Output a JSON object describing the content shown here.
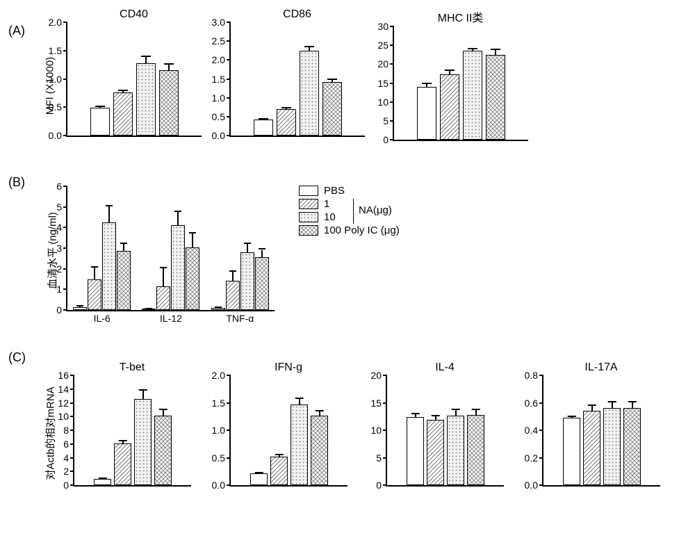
{
  "row_labels": {
    "A": "(A)",
    "B": "(B)",
    "C": "(C)"
  },
  "fills": {
    "pbs": "#ffffff",
    "na1": "url(#diag)",
    "na10": "url(#dots)",
    "poly": "url(#cross)"
  },
  "legend": {
    "items": [
      {
        "key": "pbs",
        "label": "PBS"
      },
      {
        "key": "na1",
        "label": "1"
      },
      {
        "key": "na10",
        "label": "10"
      },
      {
        "key": "poly",
        "label": "100 Poly IC (μg)"
      }
    ],
    "na_label": "NA(μg)"
  },
  "rowA": {
    "y_label": "MFI (X1000)",
    "panels": [
      {
        "title": "CD40",
        "ymax": 2.0,
        "ystep": 0.5,
        "decimals": 1,
        "bars": [
          {
            "v": 0.49,
            "e": 0.03
          },
          {
            "v": 0.76,
            "e": 0.04
          },
          {
            "v": 1.28,
            "e": 0.12
          },
          {
            "v": 1.15,
            "e": 0.12
          }
        ]
      },
      {
        "title": "CD86",
        "ymax": 3.0,
        "ystep": 0.5,
        "decimals": 1,
        "bars": [
          {
            "v": 0.42,
            "e": 0.02
          },
          {
            "v": 0.7,
            "e": 0.04
          },
          {
            "v": 2.24,
            "e": 0.12
          },
          {
            "v": 1.42,
            "e": 0.08
          }
        ]
      },
      {
        "title": "MHC II类",
        "ymax": 30,
        "ystep": 5,
        "decimals": 0,
        "bars": [
          {
            "v": 14.0,
            "e": 0.9
          },
          {
            "v": 17.3,
            "e": 1.1
          },
          {
            "v": 23.5,
            "e": 0.7
          },
          {
            "v": 22.5,
            "e": 1.4
          }
        ]
      }
    ]
  },
  "rowB": {
    "y_label": "血清水平 (ng/ml)",
    "panel": {
      "ymax": 6,
      "ystep": 1,
      "decimals": 0,
      "groups": [
        {
          "label": "IL-6",
          "bars": [
            {
              "v": 0.15,
              "e": 0.05
            },
            {
              "v": 1.5,
              "e": 0.6
            },
            {
              "v": 4.25,
              "e": 0.8
            },
            {
              "v": 2.85,
              "e": 0.4
            }
          ]
        },
        {
          "label": "IL-12",
          "bars": [
            {
              "v": 0.05,
              "e": 0.02
            },
            {
              "v": 1.15,
              "e": 0.9
            },
            {
              "v": 4.1,
              "e": 0.7
            },
            {
              "v": 3.05,
              "e": 0.7
            }
          ]
        },
        {
          "label": "TNF-α",
          "bars": [
            {
              "v": 0.1,
              "e": 0.03
            },
            {
              "v": 1.4,
              "e": 0.5
            },
            {
              "v": 2.8,
              "e": 0.45
            },
            {
              "v": 2.55,
              "e": 0.4
            }
          ]
        }
      ]
    }
  },
  "rowC": {
    "y_label": "对Actb的相对mRNA",
    "panels": [
      {
        "title": "T-bet",
        "ymax": 16,
        "ystep": 2,
        "decimals": 0,
        "bars": [
          {
            "v": 0.9,
            "e": 0.1
          },
          {
            "v": 6.1,
            "e": 0.4
          },
          {
            "v": 12.6,
            "e": 1.3
          },
          {
            "v": 10.1,
            "e": 0.9
          }
        ]
      },
      {
        "title": "IFN-g",
        "ymax": 2.0,
        "ystep": 0.5,
        "decimals": 1,
        "bars": [
          {
            "v": 0.21,
            "e": 0.02
          },
          {
            "v": 0.52,
            "e": 0.04
          },
          {
            "v": 1.47,
            "e": 0.11
          },
          {
            "v": 1.26,
            "e": 0.1
          }
        ]
      },
      {
        "title": "IL-4",
        "ymax": 20,
        "ystep": 5,
        "decimals": 0,
        "bars": [
          {
            "v": 12.4,
            "e": 0.7
          },
          {
            "v": 11.9,
            "e": 0.8
          },
          {
            "v": 12.7,
            "e": 1.1
          },
          {
            "v": 12.8,
            "e": 1.0
          }
        ]
      },
      {
        "title": "IL-17A",
        "ymax": 0.8,
        "ystep": 0.2,
        "decimals": 1,
        "bars": [
          {
            "v": 0.49,
            "e": 0.01
          },
          {
            "v": 0.54,
            "e": 0.04
          },
          {
            "v": 0.56,
            "e": 0.05
          },
          {
            "v": 0.56,
            "e": 0.05
          }
        ]
      }
    ]
  },
  "style": {
    "bar_border": "#000000",
    "axis_color": "#000000",
    "font_family": "Arial, sans-serif"
  }
}
